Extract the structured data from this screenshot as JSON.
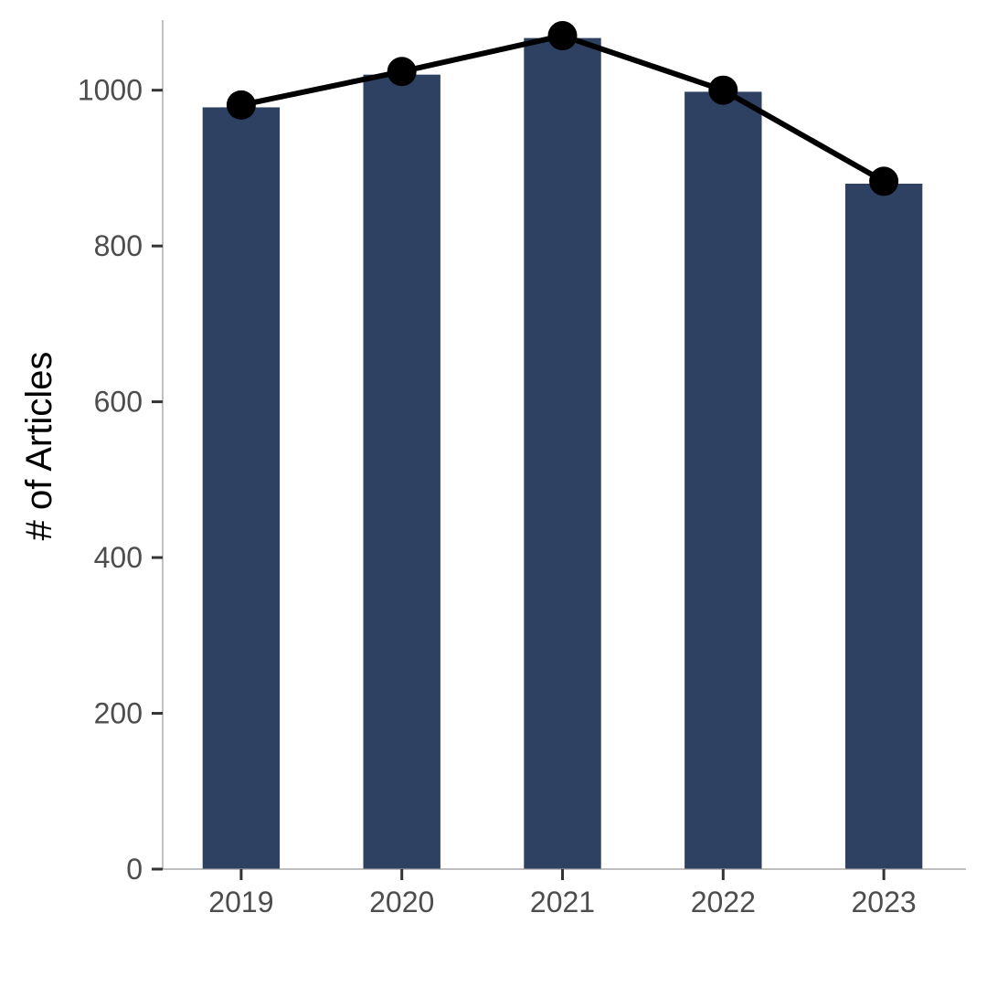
{
  "chart_data": {
    "type": "bar",
    "categories": [
      "2019",
      "2020",
      "2021",
      "2022",
      "2023"
    ],
    "series": [
      {
        "type": "bar",
        "values": [
          978,
          1020,
          1067,
          998,
          880
        ]
      },
      {
        "type": "line",
        "values": [
          981,
          1024,
          1070,
          1000,
          883
        ]
      }
    ],
    "title": "",
    "xlabel": "",
    "ylabel": "# of Articles",
    "ylim": [
      0,
      1090
    ],
    "yticks": [
      0,
      200,
      400,
      600,
      800,
      1000
    ],
    "grid": false,
    "legend": "none",
    "colors": {
      "bar": "#2e4162",
      "line": "#000000",
      "axis": "#333333",
      "tick_text": "#4d4d4d"
    }
  }
}
